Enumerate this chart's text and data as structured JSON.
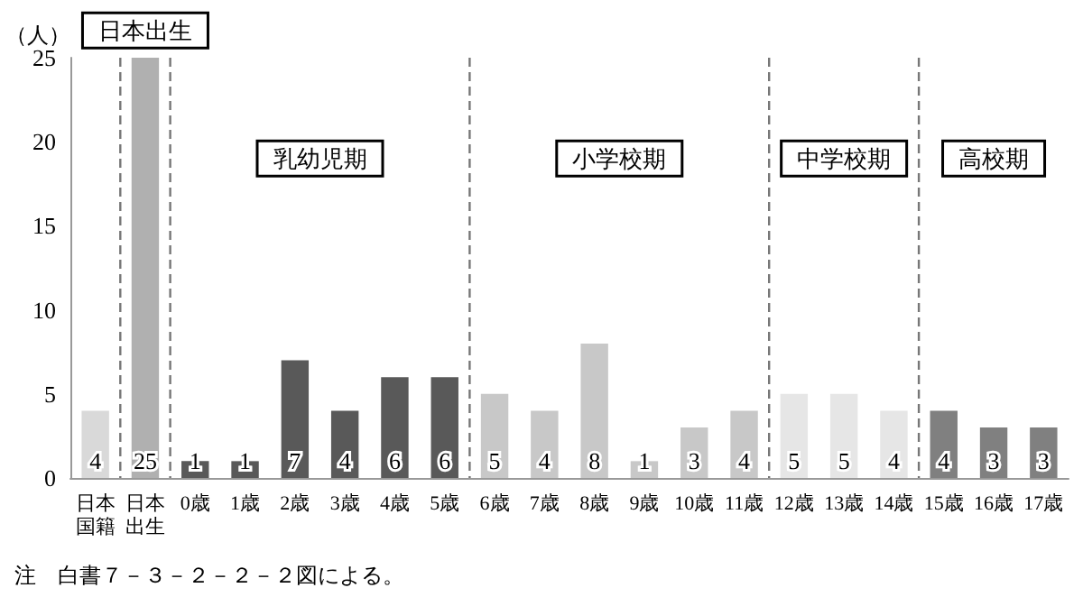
{
  "chart_data": {
    "type": "bar",
    "ylabel": "（人）",
    "categories": [
      "日本国籍",
      "日本出生",
      "0歳",
      "1歳",
      "2歳",
      "3歳",
      "4歳",
      "5歳",
      "6歳",
      "7歳",
      "8歳",
      "9歳",
      "10歳",
      "11歳",
      "12歳",
      "13歳",
      "14歳",
      "15歳",
      "16歳",
      "17歳"
    ],
    "values": [
      4,
      25,
      1,
      1,
      7,
      4,
      6,
      6,
      5,
      4,
      8,
      1,
      3,
      4,
      5,
      5,
      4,
      4,
      3,
      3
    ],
    "colors": [
      "#d9d9d9",
      "#b0b0b0",
      "#595959",
      "#595959",
      "#595959",
      "#595959",
      "#595959",
      "#595959",
      "#c8c8c8",
      "#c8c8c8",
      "#c8c8c8",
      "#c8c8c8",
      "#c8c8c8",
      "#c8c8c8",
      "#e6e6e6",
      "#e6e6e6",
      "#e6e6e6",
      "#808080",
      "#808080",
      "#808080"
    ],
    "ylim": [
      0,
      25
    ],
    "yticks": [
      0,
      5,
      10,
      15,
      20,
      25
    ],
    "data_labels": true,
    "grid": false,
    "annotations": [
      "日本出生",
      "乳幼児期",
      "小学校期",
      "中学校期",
      "高校期",
      "注　白書７－３－２－２－２図による。"
    ]
  }
}
